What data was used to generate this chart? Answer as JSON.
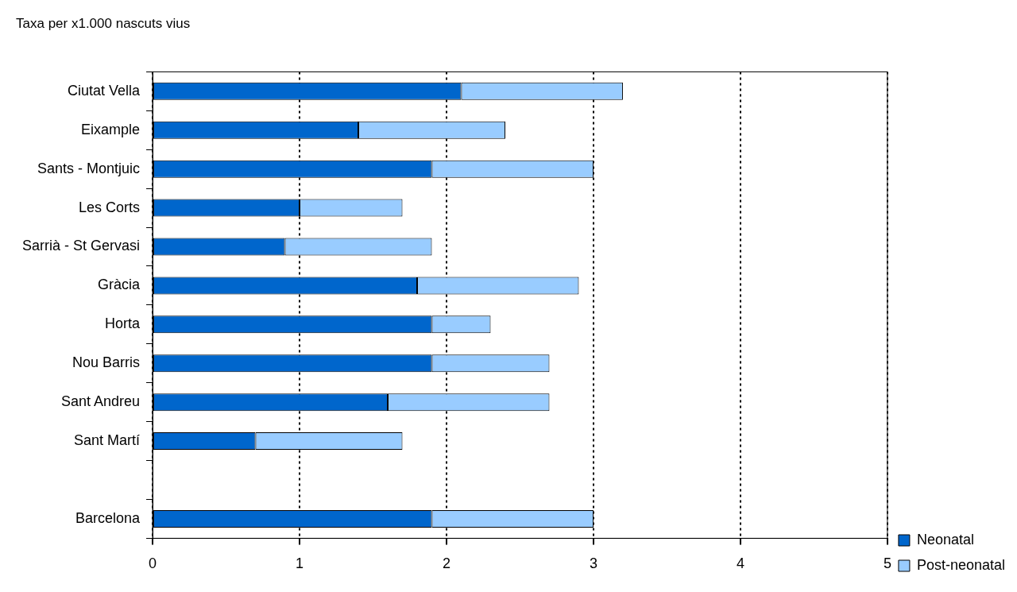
{
  "chart_data": {
    "type": "bar",
    "orientation": "horizontal",
    "stacked": true,
    "title": "Taxa per x1.000 nascuts vius",
    "categories": [
      "Ciutat Vella",
      "Eixample",
      "Sants - Montjuic",
      "Les Corts",
      "Sarrià - St Gervasi",
      "Gràcia",
      "Horta",
      "Nou Barris",
      "Sant Andreu",
      "Sant Martí",
      null,
      "Barcelona"
    ],
    "series": [
      {
        "name": "Neonatal",
        "color": "#0066cc",
        "values": [
          2.1,
          1.4,
          1.9,
          1.0,
          0.9,
          1.8,
          1.9,
          1.9,
          1.6,
          0.7,
          null,
          1.9
        ]
      },
      {
        "name": "Post-neonatal",
        "color": "#99ccff",
        "values": [
          1.1,
          1.0,
          1.1,
          0.7,
          1.0,
          1.1,
          0.4,
          0.8,
          1.1,
          1.0,
          null,
          1.1
        ]
      }
    ],
    "xlim": [
      0,
      5
    ],
    "xticks": [
      0,
      1,
      2,
      3,
      4,
      5
    ],
    "grid": "x",
    "legend": "right"
  }
}
